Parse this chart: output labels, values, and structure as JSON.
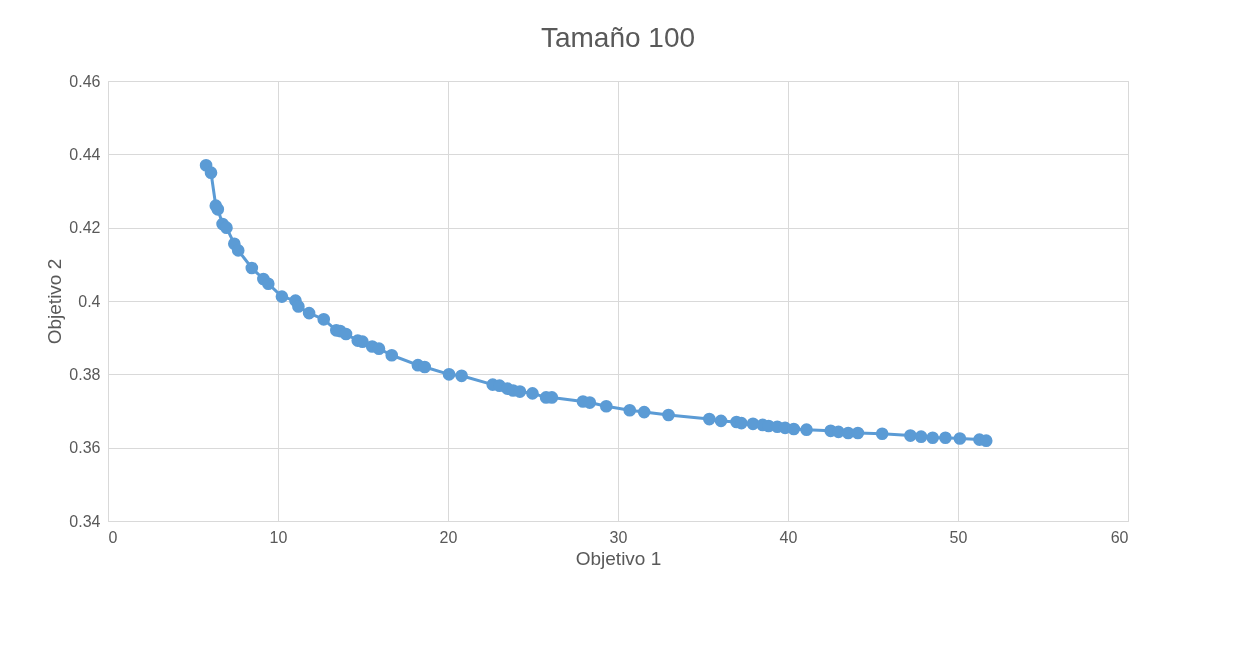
{
  "chart_data": {
    "type": "line",
    "title": "Tamaño 100",
    "xlabel": "Objetivo 1",
    "ylabel": "Objetivo 2",
    "x": [
      5.77,
      6.06,
      6.34,
      6.46,
      6.74,
      6.97,
      7.43,
      7.66,
      8.46,
      9.14,
      9.43,
      10.23,
      11.03,
      11.2,
      11.83,
      12.69,
      13.43,
      13.66,
      14.0,
      14.69,
      14.97,
      15.54,
      15.94,
      16.69,
      18.23,
      18.63,
      20.06,
      20.8,
      22.63,
      23.03,
      23.49,
      23.83,
      24.23,
      24.97,
      25.77,
      26.11,
      27.94,
      28.34,
      29.31,
      30.69,
      31.54,
      32.97,
      35.37,
      36.06,
      36.97,
      37.26,
      37.94,
      38.51,
      38.86,
      39.37,
      39.83,
      40.34,
      41.09,
      42.51,
      42.97,
      43.54,
      44.11,
      45.54,
      47.2,
      47.83,
      48.51,
      49.26,
      50.11,
      51.26,
      51.66
    ],
    "series": [
      {
        "color": "#5b9bd5",
        "values": [
          0.437,
          0.435,
          0.426,
          0.425,
          0.421,
          0.42,
          0.4156,
          0.4138,
          0.409,
          0.406,
          0.4047,
          0.4012,
          0.4001,
          0.3985,
          0.3967,
          0.395,
          0.392,
          0.3918,
          0.391,
          0.3892,
          0.3889,
          0.3876,
          0.387,
          0.3852,
          0.3825,
          0.382,
          0.38,
          0.3796,
          0.3772,
          0.3769,
          0.3761,
          0.3756,
          0.3753,
          0.3748,
          0.3737,
          0.3737,
          0.3726,
          0.3723,
          0.3713,
          0.3702,
          0.3697,
          0.3689,
          0.3678,
          0.3673,
          0.367,
          0.3667,
          0.3665,
          0.3662,
          0.3659,
          0.3657,
          0.3654,
          0.3651,
          0.3649,
          0.3646,
          0.3643,
          0.364,
          0.364,
          0.3638,
          0.3633,
          0.363,
          0.3627,
          0.3627,
          0.3625,
          0.3622,
          0.3619
        ]
      }
    ],
    "xlim": [
      0,
      60
    ],
    "xticks": [
      0,
      10,
      20,
      30,
      40,
      50,
      60
    ],
    "ylim": [
      0.34,
      0.46
    ],
    "yticks": [
      0.34,
      0.36,
      0.38,
      0.4,
      0.42,
      0.44,
      0.46
    ],
    "grid": true,
    "marker": "circle",
    "line_style": "solid"
  }
}
